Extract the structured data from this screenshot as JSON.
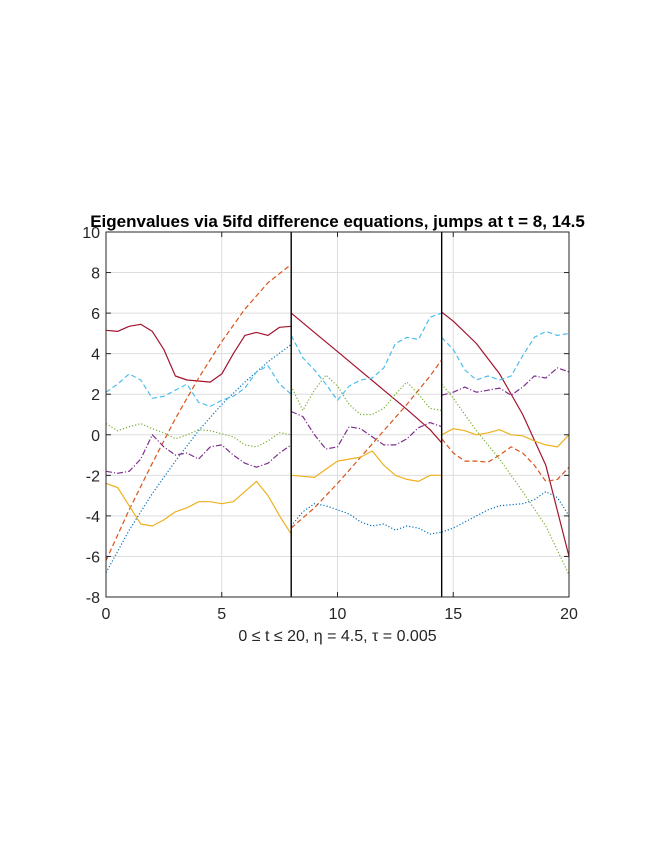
{
  "chart_data": {
    "type": "line",
    "title": "Eigenvalues via 5ifd difference equations, jumps at t = 8, 14.5",
    "xlabel": "0 ≤ t ≤ 20,  η = 4.5,  τ = 0.005",
    "ylabel": "",
    "xlim": [
      0,
      20
    ],
    "ylim": [
      -8,
      10
    ],
    "xticks": [
      0,
      5,
      10,
      15,
      20
    ],
    "yticks": [
      -8,
      -6,
      -4,
      -2,
      0,
      2,
      4,
      6,
      8,
      10
    ],
    "xtick_labels": [
      "0",
      "5",
      "10",
      "15",
      "20"
    ],
    "ytick_labels": [
      "-8",
      "-6",
      "-4",
      "-2",
      "0",
      "2",
      "4",
      "6",
      "8",
      "10"
    ],
    "grid": true,
    "legend": "none",
    "jumps": [
      8,
      14.5
    ],
    "series": [
      {
        "color": "#A2142F",
        "dash": "solid",
        "segments": [
          [
            [
              0,
              5.15
            ],
            [
              0.5,
              5.1
            ],
            [
              1,
              5.35
            ],
            [
              1.5,
              5.45
            ],
            [
              2,
              5.1
            ],
            [
              2.5,
              4.2
            ],
            [
              3,
              2.9
            ],
            [
              3.5,
              2.7
            ],
            [
              4,
              2.65
            ],
            [
              4.5,
              2.6
            ],
            [
              5,
              3.0
            ],
            [
              5.5,
              4.0
            ],
            [
              6,
              4.9
            ],
            [
              6.5,
              5.05
            ],
            [
              7,
              4.9
            ],
            [
              7.5,
              5.3
            ],
            [
              8,
              5.35
            ]
          ],
          [
            [
              8,
              6.0
            ],
            [
              9,
              5.05
            ],
            [
              10,
              4.1
            ],
            [
              11,
              3.15
            ],
            [
              12,
              2.2
            ],
            [
              13,
              1.25
            ],
            [
              14,
              0.25
            ],
            [
              14.5,
              -0.4
            ]
          ],
          [
            [
              14.5,
              6.05
            ],
            [
              15,
              5.6
            ],
            [
              16,
              4.5
            ],
            [
              17,
              3.0
            ],
            [
              18,
              1.0
            ],
            [
              19,
              -1.5
            ],
            [
              20,
              -6.0
            ]
          ]
        ]
      },
      {
        "color": "#D95319",
        "dash": "dashed",
        "segments": [
          [
            [
              0,
              -6.2
            ],
            [
              1,
              -3.7
            ],
            [
              2,
              -1.4
            ],
            [
              3,
              0.8
            ],
            [
              4,
              2.8
            ],
            [
              5,
              4.6
            ],
            [
              6,
              6.2
            ],
            [
              7,
              7.5
            ],
            [
              8,
              8.4
            ]
          ],
          [
            [
              8,
              -4.6
            ],
            [
              9,
              -3.6
            ],
            [
              10,
              -2.4
            ],
            [
              11,
              -1.1
            ],
            [
              12,
              0.2
            ],
            [
              13,
              1.5
            ],
            [
              14,
              2.9
            ],
            [
              14.5,
              3.7
            ]
          ],
          [
            [
              14.5,
              -0.2
            ],
            [
              15,
              -0.9
            ],
            [
              15.5,
              -1.3
            ],
            [
              16,
              -1.3
            ],
            [
              16.5,
              -1.35
            ],
            [
              17,
              -1.0
            ],
            [
              17.5,
              -0.6
            ],
            [
              18,
              -0.9
            ],
            [
              18.5,
              -1.5
            ],
            [
              19,
              -2.3
            ],
            [
              19.5,
              -2.2
            ],
            [
              20,
              -1.6
            ]
          ]
        ]
      },
      {
        "color": "#0072BD",
        "dash": "dotted",
        "segments": [
          [
            [
              0,
              -6.8
            ],
            [
              1,
              -4.7
            ],
            [
              2,
              -2.9
            ],
            [
              3,
              -1.3
            ],
            [
              4,
              0.2
            ],
            [
              5,
              1.5
            ],
            [
              6,
              2.6
            ],
            [
              7,
              3.6
            ],
            [
              8,
              4.45
            ]
          ],
          [
            [
              8,
              -4.5
            ],
            [
              8.5,
              -3.8
            ],
            [
              9,
              -3.4
            ],
            [
              9.5,
              -3.5
            ],
            [
              10,
              -3.7
            ],
            [
              10.5,
              -3.9
            ],
            [
              11,
              -4.3
            ],
            [
              11.5,
              -4.5
            ],
            [
              12,
              -4.4
            ],
            [
              12.5,
              -4.7
            ],
            [
              13,
              -4.5
            ],
            [
              13.5,
              -4.6
            ],
            [
              14,
              -4.9
            ],
            [
              14.5,
              -4.8
            ]
          ],
          [
            [
              14.5,
              -4.8
            ],
            [
              15,
              -4.6
            ],
            [
              15.5,
              -4.3
            ],
            [
              16,
              -4.0
            ],
            [
              16.5,
              -3.7
            ],
            [
              17,
              -3.5
            ],
            [
              17.5,
              -3.45
            ],
            [
              18,
              -3.4
            ],
            [
              18.5,
              -3.2
            ],
            [
              19,
              -2.8
            ],
            [
              19.5,
              -3.1
            ],
            [
              20,
              -4.0
            ]
          ]
        ]
      },
      {
        "color": "#4DBEEE",
        "dash": "dashed",
        "segments": [
          [
            [
              0,
              2.1
            ],
            [
              0.5,
              2.5
            ],
            [
              1,
              3.0
            ],
            [
              1.5,
              2.7
            ],
            [
              2,
              1.8
            ],
            [
              2.5,
              1.9
            ],
            [
              3,
              2.2
            ],
            [
              3.5,
              2.5
            ],
            [
              4,
              1.6
            ],
            [
              4.5,
              1.4
            ],
            [
              5,
              1.7
            ],
            [
              5.5,
              1.9
            ],
            [
              6,
              2.3
            ],
            [
              6.5,
              3.1
            ],
            [
              7,
              3.4
            ],
            [
              7.5,
              2.5
            ],
            [
              8,
              2.0
            ]
          ],
          [
            [
              8,
              4.9
            ],
            [
              8.5,
              3.8
            ],
            [
              9,
              3.2
            ],
            [
              9.5,
              2.5
            ],
            [
              10,
              1.7
            ],
            [
              10.5,
              2.4
            ],
            [
              11,
              2.7
            ],
            [
              11.5,
              2.8
            ],
            [
              12,
              3.3
            ],
            [
              12.5,
              4.5
            ],
            [
              13,
              4.8
            ],
            [
              13.5,
              4.7
            ],
            [
              14,
              5.8
            ],
            [
              14.5,
              6.0
            ]
          ],
          [
            [
              14.5,
              4.8
            ],
            [
              15,
              4.2
            ],
            [
              15.5,
              3.2
            ],
            [
              16,
              2.7
            ],
            [
              16.5,
              2.9
            ],
            [
              17,
              2.7
            ],
            [
              17.5,
              2.9
            ],
            [
              18,
              3.9
            ],
            [
              18.5,
              4.8
            ],
            [
              19,
              5.1
            ],
            [
              19.5,
              4.9
            ],
            [
              20,
              5.0
            ]
          ]
        ]
      },
      {
        "color": "#77AC30",
        "dash": "dotted",
        "segments": [
          [
            [
              0,
              0.55
            ],
            [
              0.5,
              0.2
            ],
            [
              1,
              0.4
            ],
            [
              1.5,
              0.55
            ],
            [
              2,
              0.3
            ],
            [
              2.5,
              0.1
            ],
            [
              3,
              -0.2
            ],
            [
              3.5,
              0.0
            ],
            [
              4,
              0.25
            ],
            [
              4.5,
              0.2
            ],
            [
              5,
              0.05
            ],
            [
              5.5,
              -0.1
            ],
            [
              6,
              -0.5
            ],
            [
              6.5,
              -0.6
            ],
            [
              7,
              -0.3
            ],
            [
              7.5,
              0.1
            ],
            [
              8,
              0.0
            ]
          ],
          [
            [
              8,
              2.4
            ],
            [
              8.5,
              1.2
            ],
            [
              9,
              2.2
            ],
            [
              9.5,
              2.95
            ],
            [
              10,
              2.4
            ],
            [
              10.5,
              1.5
            ],
            [
              11,
              1.0
            ],
            [
              11.5,
              1.0
            ],
            [
              12,
              1.3
            ],
            [
              12.5,
              2.0
            ],
            [
              13,
              2.6
            ],
            [
              13.5,
              2.0
            ],
            [
              14,
              1.3
            ],
            [
              14.5,
              1.2
            ]
          ],
          [
            [
              14.5,
              2.5
            ],
            [
              15,
              1.8
            ],
            [
              16,
              0.2
            ],
            [
              17,
              -1.2
            ],
            [
              18,
              -2.8
            ],
            [
              19,
              -4.5
            ],
            [
              20,
              -6.9
            ]
          ]
        ]
      },
      {
        "color": "#7E2F8E",
        "dash": "dashdot",
        "segments": [
          [
            [
              0,
              -1.8
            ],
            [
              0.5,
              -1.9
            ],
            [
              1,
              -1.8
            ],
            [
              1.5,
              -1.2
            ],
            [
              2,
              0.0
            ],
            [
              2.5,
              -0.6
            ],
            [
              3,
              -1.0
            ],
            [
              3.5,
              -0.9
            ],
            [
              4,
              -1.2
            ],
            [
              4.5,
              -0.6
            ],
            [
              5,
              -0.5
            ],
            [
              5.5,
              -1.0
            ],
            [
              6,
              -1.4
            ],
            [
              6.5,
              -1.6
            ],
            [
              7,
              -1.4
            ],
            [
              7.5,
              -0.9
            ],
            [
              8,
              -0.5
            ]
          ],
          [
            [
              8,
              1.15
            ],
            [
              8.5,
              0.9
            ],
            [
              9,
              0.0
            ],
            [
              9.5,
              -0.7
            ],
            [
              10,
              -0.6
            ],
            [
              10.5,
              0.4
            ],
            [
              11,
              0.3
            ],
            [
              11.5,
              -0.1
            ],
            [
              12,
              -0.5
            ],
            [
              12.5,
              -0.5
            ],
            [
              13,
              -0.2
            ],
            [
              13.5,
              0.35
            ],
            [
              14,
              0.6
            ],
            [
              14.5,
              0.4
            ]
          ],
          [
            [
              14.5,
              1.95
            ],
            [
              15,
              2.1
            ],
            [
              15.5,
              2.35
            ],
            [
              16,
              2.1
            ],
            [
              16.5,
              2.2
            ],
            [
              17,
              2.3
            ],
            [
              17.5,
              1.95
            ],
            [
              18,
              2.35
            ],
            [
              18.5,
              2.9
            ],
            [
              19,
              2.8
            ],
            [
              19.5,
              3.3
            ],
            [
              20,
              3.1
            ]
          ]
        ]
      },
      {
        "color": "#EDB120",
        "dash": "solid",
        "segments": [
          [
            [
              0,
              -2.4
            ],
            [
              0.5,
              -2.6
            ],
            [
              1,
              -3.5
            ],
            [
              1.5,
              -4.4
            ],
            [
              2,
              -4.5
            ],
            [
              2.5,
              -4.2
            ],
            [
              3,
              -3.8
            ],
            [
              3.5,
              -3.6
            ],
            [
              4,
              -3.3
            ],
            [
              4.5,
              -3.3
            ],
            [
              5,
              -3.4
            ],
            [
              5.5,
              -3.3
            ],
            [
              6,
              -2.8
            ],
            [
              6.5,
              -2.3
            ],
            [
              7,
              -3.0
            ],
            [
              7.5,
              -4.0
            ],
            [
              8,
              -4.9
            ]
          ],
          [
            [
              8,
              -2.0
            ],
            [
              8.5,
              -2.05
            ],
            [
              9,
              -2.1
            ],
            [
              9.5,
              -1.7
            ],
            [
              10,
              -1.3
            ],
            [
              10.5,
              -1.2
            ],
            [
              11,
              -1.1
            ],
            [
              11.5,
              -0.8
            ],
            [
              12,
              -1.5
            ],
            [
              12.5,
              -2.0
            ],
            [
              13,
              -2.2
            ],
            [
              13.5,
              -2.3
            ],
            [
              14,
              -2.0
            ],
            [
              14.5,
              -2.0
            ]
          ],
          [
            [
              14.5,
              0.0
            ],
            [
              15,
              0.3
            ],
            [
              15.5,
              0.2
            ],
            [
              16,
              0.0
            ],
            [
              16.5,
              0.1
            ],
            [
              17,
              0.25
            ],
            [
              17.5,
              0.0
            ],
            [
              18,
              -0.05
            ],
            [
              18.5,
              -0.3
            ],
            [
              19,
              -0.5
            ],
            [
              19.5,
              -0.6
            ],
            [
              20,
              0.0
            ]
          ]
        ]
      }
    ]
  }
}
